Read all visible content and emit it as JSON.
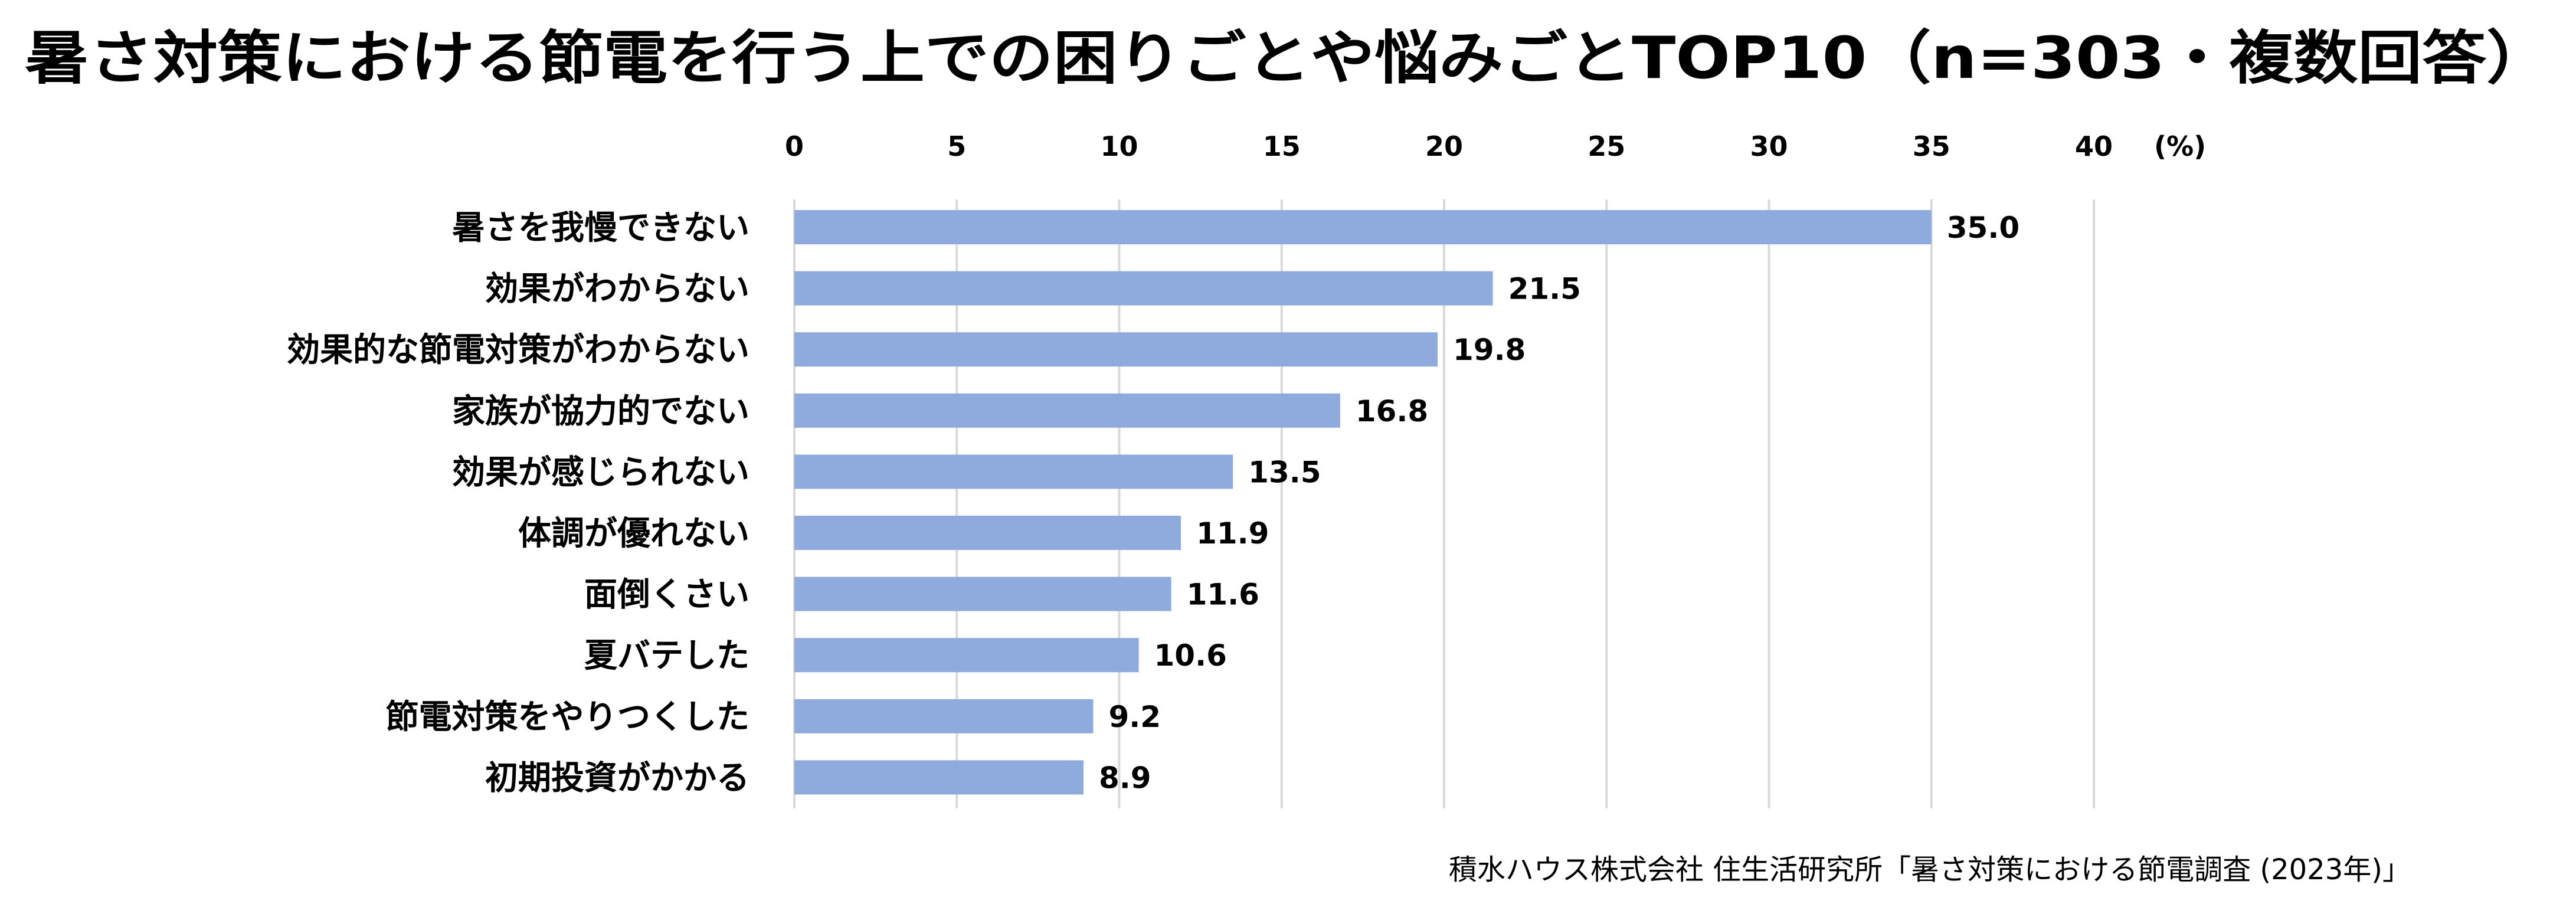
{
  "chart_data": {
    "type": "bar",
    "orientation": "horizontal",
    "title": "暑さ対策における節電を行う上での困りごとや悩みごとTOP10（n=303・複数回答）",
    "unit_label": "(%)",
    "xlim": [
      0,
      40
    ],
    "ticks": [
      0,
      5,
      10,
      15,
      20,
      25,
      30,
      35,
      40
    ],
    "grid": true,
    "categories": [
      "暑さを我慢できない",
      "効果がわからない",
      "効果的な節電対策がわからない",
      "家族が協力的でない",
      "効果が感じられない",
      "体調が優れない",
      "面倒くさい",
      "夏バテした",
      "節電対策をやりつくした",
      "初期投資がかかる"
    ],
    "values": [
      35.0,
      21.5,
      19.8,
      16.8,
      13.5,
      11.9,
      11.6,
      10.6,
      9.2,
      8.9
    ],
    "value_labels": [
      "35.0",
      "21.5",
      "19.8",
      "16.8",
      "13.5",
      "11.9",
      "11.6",
      "10.6",
      "9.2",
      "8.9"
    ],
    "bar_color": "#8FAADC",
    "grid_color": "#D9D9D9",
    "source": "積水ハウス株式会社 住生活研究所「暑さ対策における節電調査 (2023年)」"
  }
}
